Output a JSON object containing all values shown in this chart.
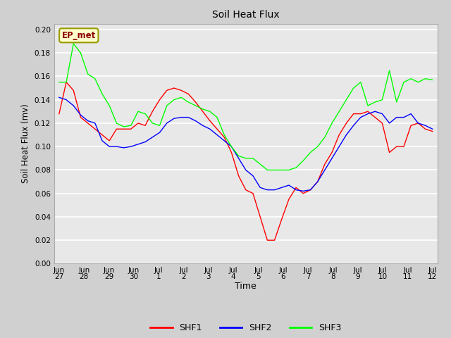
{
  "title": "Soil Heat Flux",
  "xlabel": "Time",
  "ylabel": "Soil Heat Flux (mv)",
  "ylim": [
    0.0,
    0.205
  ],
  "yticks": [
    0.0,
    0.02,
    0.04,
    0.06,
    0.08,
    0.1,
    0.12,
    0.14,
    0.16,
    0.18,
    0.2
  ],
  "annotation_text": "EP_met",
  "annotation_bg": "#ffffcc",
  "annotation_border": "#999900",
  "xtick_labels": [
    "Jun\n27",
    "Jun\n28",
    "Jun\n29",
    "Jun\n30",
    "Jul\n1",
    "Jul\n2",
    "Jul\n3",
    "Jul\n4",
    "Jul\n5",
    "Jul\n6",
    "Jul\n7",
    "Jul\n8",
    "Jul\n9",
    "Jul\n10",
    "Jul\n11",
    "Jul\n12"
  ],
  "shf1": [
    0.128,
    0.155,
    0.148,
    0.125,
    0.12,
    0.115,
    0.11,
    0.105,
    0.115,
    0.115,
    0.115,
    0.12,
    0.118,
    0.13,
    0.14,
    0.148,
    0.15,
    0.148,
    0.145,
    0.138,
    0.13,
    0.122,
    0.115,
    0.108,
    0.095,
    0.075,
    0.063,
    0.06,
    0.04,
    0.02,
    0.02,
    0.038,
    0.055,
    0.065,
    0.06,
    0.063,
    0.07,
    0.085,
    0.095,
    0.11,
    0.12,
    0.128,
    0.128,
    0.13,
    0.125,
    0.12,
    0.095,
    0.1,
    0.1,
    0.118,
    0.12,
    0.115,
    0.113
  ],
  "shf2": [
    0.142,
    0.14,
    0.135,
    0.127,
    0.122,
    0.12,
    0.105,
    0.1,
    0.1,
    0.099,
    0.1,
    0.102,
    0.104,
    0.108,
    0.112,
    0.12,
    0.124,
    0.125,
    0.125,
    0.122,
    0.118,
    0.115,
    0.11,
    0.105,
    0.1,
    0.09,
    0.08,
    0.075,
    0.065,
    0.063,
    0.063,
    0.065,
    0.067,
    0.063,
    0.062,
    0.063,
    0.07,
    0.08,
    0.09,
    0.1,
    0.11,
    0.118,
    0.125,
    0.128,
    0.13,
    0.128,
    0.12,
    0.125,
    0.125,
    0.128,
    0.12,
    0.118,
    0.115
  ],
  "shf3": [
    0.155,
    0.155,
    0.188,
    0.18,
    0.162,
    0.158,
    0.145,
    0.135,
    0.12,
    0.117,
    0.118,
    0.13,
    0.128,
    0.12,
    0.118,
    0.135,
    0.14,
    0.142,
    0.138,
    0.135,
    0.132,
    0.13,
    0.125,
    0.11,
    0.1,
    0.092,
    0.09,
    0.09,
    0.085,
    0.08,
    0.08,
    0.08,
    0.08,
    0.082,
    0.088,
    0.095,
    0.1,
    0.108,
    0.12,
    0.13,
    0.14,
    0.15,
    0.155,
    0.135,
    0.138,
    0.14,
    0.165,
    0.138,
    0.155,
    0.158,
    0.155,
    0.158,
    0.157
  ]
}
